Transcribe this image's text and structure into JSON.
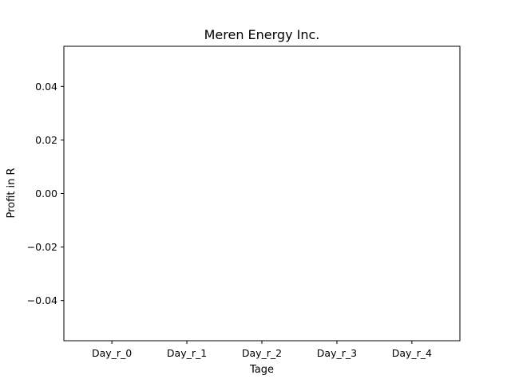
{
  "chart_data": {
    "type": "bar",
    "title": "Meren Energy Inc.",
    "xlabel": "Tage",
    "ylabel": "Profit in R",
    "categories": [
      "Day_r_0",
      "Day_r_1",
      "Day_r_2",
      "Day_r_3",
      "Day_r_4"
    ],
    "values": [
      0,
      0,
      0,
      0,
      0
    ],
    "ylim": [
      -0.055,
      0.055
    ],
    "yticks": [
      {
        "value": 0.04,
        "label": "0.04"
      },
      {
        "value": 0.02,
        "label": "0.02"
      },
      {
        "value": 0.0,
        "label": "0.00"
      },
      {
        "value": -0.02,
        "label": "−0.02"
      },
      {
        "value": -0.04,
        "label": "−0.04"
      }
    ],
    "grid": false,
    "legend": "none"
  }
}
